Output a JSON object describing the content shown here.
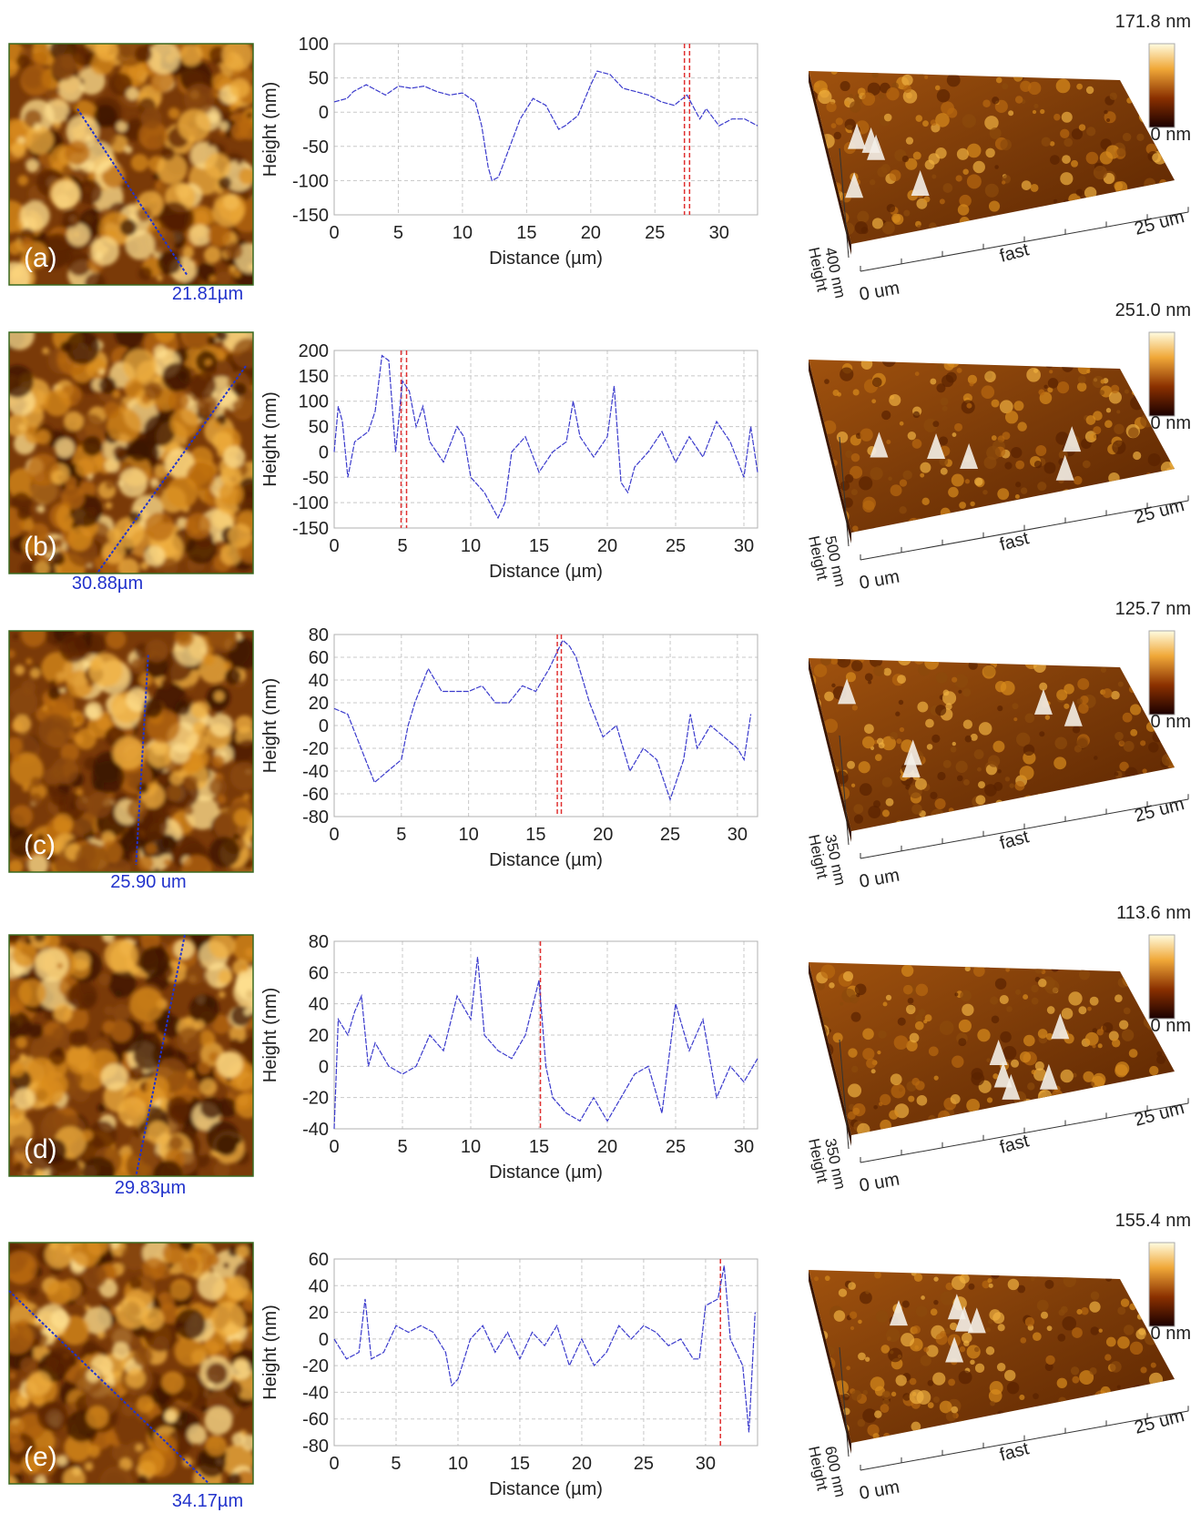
{
  "chart_data": [
    {
      "type": "line",
      "x_label": "Distance (µm)",
      "y_label": "Height (nm)",
      "color": "#3a3acc",
      "cursor_color": "#e03030",
      "grid": true,
      "xlim": [
        0,
        33
      ],
      "ylim": [
        -150,
        100
      ],
      "xticks": [
        0,
        5,
        10,
        15,
        20,
        25,
        30
      ],
      "yticks": [
        -150,
        -100,
        -50,
        0,
        50,
        100
      ],
      "cursors": [
        27.3,
        27.7
      ],
      "x": [
        0,
        1,
        1.5,
        2.5,
        3,
        4,
        5,
        6,
        7,
        8,
        9,
        10,
        11,
        11.5,
        12,
        12.3,
        12.8,
        13.5,
        14.5,
        15.5,
        16.5,
        17.5,
        18,
        19,
        20,
        20.5,
        21.5,
        22.5,
        23.5,
        24.5,
        25.5,
        26.5,
        27.5,
        28.5,
        29,
        30,
        31,
        32,
        33
      ],
      "values": [
        15,
        20,
        30,
        40,
        35,
        25,
        38,
        35,
        38,
        30,
        25,
        28,
        15,
        -20,
        -80,
        -100,
        -95,
        -60,
        -10,
        20,
        10,
        -25,
        -20,
        -5,
        40,
        60,
        55,
        35,
        30,
        25,
        15,
        10,
        25,
        -10,
        5,
        -20,
        -10,
        -10,
        -20
      ]
    },
    {
      "type": "line",
      "x_label": "Distance (µm)",
      "y_label": "Height (nm)",
      "color": "#3a3acc",
      "cursor_color": "#e03030",
      "grid": true,
      "xlim": [
        0,
        31
      ],
      "ylim": [
        -150,
        200
      ],
      "xticks": [
        0,
        5,
        10,
        15,
        20,
        25,
        30
      ],
      "yticks": [
        -150,
        -100,
        -50,
        0,
        50,
        100,
        150,
        200
      ],
      "cursors": [
        4.9,
        5.3
      ],
      "x": [
        0,
        0.3,
        0.6,
        1,
        1.5,
        2,
        2.5,
        3,
        3.5,
        4,
        4.5,
        5,
        5.5,
        6,
        6.5,
        7,
        8,
        9,
        9.5,
        10,
        11,
        12,
        12.5,
        13,
        14,
        15,
        16,
        17,
        17.5,
        18,
        19,
        20,
        20.5,
        21,
        21.5,
        22,
        23,
        24,
        25,
        26,
        27,
        28,
        29,
        30,
        30.5,
        31
      ],
      "values": [
        0,
        90,
        60,
        -50,
        20,
        30,
        40,
        80,
        190,
        180,
        0,
        140,
        120,
        50,
        90,
        20,
        -20,
        50,
        30,
        -50,
        -80,
        -130,
        -100,
        0,
        30,
        -40,
        0,
        20,
        100,
        30,
        -10,
        30,
        130,
        -60,
        -80,
        -30,
        0,
        40,
        -20,
        30,
        -10,
        60,
        20,
        -50,
        50,
        -40
      ]
    },
    {
      "type": "line",
      "x_label": "Distance (µm)",
      "y_label": "Height (nm)",
      "color": "#3a3acc",
      "cursor_color": "#e03030",
      "grid": true,
      "xlim": [
        0,
        31.5
      ],
      "ylim": [
        -80,
        80
      ],
      "xticks": [
        0,
        5,
        10,
        15,
        20,
        25,
        30
      ],
      "yticks": [
        -80,
        -60,
        -40,
        -20,
        0,
        20,
        40,
        60,
        80
      ],
      "cursors": [
        16.6,
        16.9
      ],
      "x": [
        0,
        1,
        2,
        3,
        4,
        5,
        5.5,
        6,
        7,
        8,
        9,
        10,
        11,
        12,
        13,
        14,
        15,
        16,
        17,
        17.5,
        18,
        19,
        20,
        21,
        22,
        23,
        24,
        25,
        26,
        26.5,
        27,
        28,
        29,
        30,
        30.5,
        31
      ],
      "values": [
        15,
        10,
        -20,
        -50,
        -40,
        -30,
        0,
        20,
        50,
        30,
        30,
        30,
        35,
        20,
        20,
        35,
        30,
        50,
        75,
        70,
        60,
        20,
        -10,
        0,
        -40,
        -20,
        -30,
        -65,
        -30,
        10,
        -20,
        0,
        -10,
        -20,
        -30,
        10
      ]
    },
    {
      "type": "line",
      "x_label": "Distance (µm)",
      "y_label": "Height (nm)",
      "color": "#3a3acc",
      "cursor_color": "#e03030",
      "grid": true,
      "xlim": [
        0,
        31
      ],
      "ylim": [
        -40,
        80
      ],
      "xticks": [
        0,
        5,
        10,
        15,
        20,
        25,
        30
      ],
      "yticks": [
        -40,
        -20,
        0,
        20,
        40,
        60,
        80
      ],
      "cursors": [
        15.1
      ],
      "x": [
        0,
        0.3,
        1,
        1.5,
        2,
        2.5,
        3,
        4,
        5,
        6,
        7,
        8,
        9,
        10,
        10.5,
        11,
        12,
        13,
        14,
        15,
        15.5,
        16,
        17,
        18,
        19,
        20,
        21,
        22,
        23,
        24,
        25,
        26,
        27,
        28,
        29,
        30,
        31
      ],
      "values": [
        -40,
        30,
        20,
        35,
        45,
        0,
        15,
        0,
        -5,
        0,
        20,
        10,
        45,
        30,
        70,
        20,
        10,
        5,
        20,
        55,
        0,
        -20,
        -30,
        -35,
        -20,
        -35,
        -20,
        -5,
        0,
        -30,
        40,
        10,
        30,
        -20,
        0,
        -10,
        5
      ]
    },
    {
      "type": "line",
      "x_label": "Distance (µm)",
      "y_label": "Height (nm)",
      "color": "#3a3acc",
      "cursor_color": "#e03030",
      "grid": true,
      "xlim": [
        0,
        34.2
      ],
      "ylim": [
        -80,
        60
      ],
      "xticks": [
        0,
        5,
        10,
        15,
        20,
        25,
        30
      ],
      "yticks": [
        -80,
        -60,
        -40,
        -20,
        0,
        20,
        40,
        60
      ],
      "cursors": [
        31.2
      ],
      "x": [
        0,
        1,
        2,
        2.5,
        3,
        4,
        5,
        6,
        7,
        8,
        9,
        9.5,
        10,
        11,
        12,
        13,
        14,
        15,
        16,
        17,
        18,
        19,
        20,
        21,
        22,
        23,
        24,
        25,
        26,
        27,
        28,
        29,
        29.5,
        30,
        31,
        31.5,
        32,
        33,
        33.5,
        34
      ],
      "values": [
        0,
        -15,
        -10,
        30,
        -15,
        -10,
        10,
        5,
        10,
        5,
        -10,
        -35,
        -30,
        0,
        10,
        -10,
        5,
        -15,
        5,
        -5,
        10,
        -20,
        0,
        -20,
        -10,
        10,
        0,
        10,
        5,
        -5,
        0,
        -15,
        -15,
        25,
        30,
        55,
        0,
        -20,
        -70,
        20
      ]
    }
  ],
  "panels": [
    {
      "label": "(a)",
      "scan_length": "21.81µm",
      "colorbar_max": "171.8 nm",
      "colorbar_min": "0 nm",
      "height_range": "400 nm",
      "height_label": "Height",
      "fast_label": "fast",
      "axis_start": "0 um",
      "axis_end": "25 um"
    },
    {
      "label": "(b)",
      "scan_length": "30.88µm",
      "colorbar_max": "251.0 nm",
      "colorbar_min": "0 nm",
      "height_range": "500 nm",
      "height_label": "Height",
      "fast_label": "fast",
      "axis_start": "0 um",
      "axis_end": "25 um"
    },
    {
      "label": "(c)",
      "scan_length": "25.90 um",
      "colorbar_max": "125.7 nm",
      "colorbar_min": "0 nm",
      "height_range": "350 nm",
      "height_label": "Height",
      "fast_label": "fast",
      "axis_start": "0 um",
      "axis_end": "25 um"
    },
    {
      "label": "(d)",
      "scan_length": "29.83µm",
      "colorbar_max": "113.6 nm",
      "colorbar_min": "0 nm",
      "height_range": "350 nm",
      "height_label": "Height",
      "fast_label": "fast",
      "axis_start": "0 um",
      "axis_end": "25 um"
    },
    {
      "label": "(e)",
      "scan_length": "34.17µm",
      "colorbar_max": "155.4 nm",
      "colorbar_min": "0 nm",
      "height_range": "600 nm",
      "height_label": "Height",
      "fast_label": "fast",
      "axis_start": "0 um",
      "axis_end": "25 um"
    }
  ]
}
